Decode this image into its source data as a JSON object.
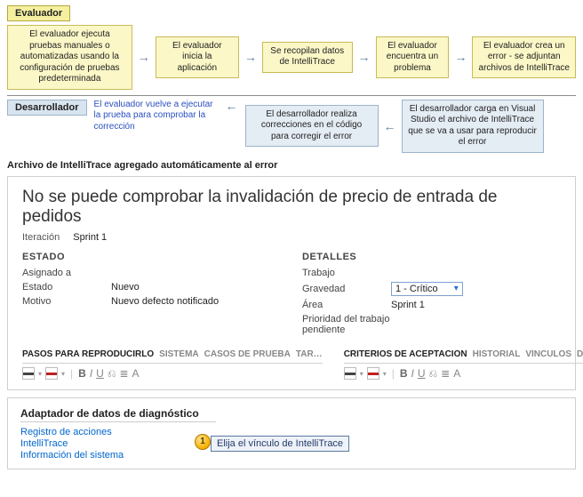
{
  "roles": {
    "evaluator": "Evaluador",
    "developer": "Desarrollador"
  },
  "flow": {
    "row1": [
      "El evaluador ejecuta pruebas manuales o automatizadas usando la configuración de pruebas predeterminada",
      "El evaluador inicia la aplicación",
      "Se recopilan datos de IntelliTrace",
      "El evaluador encuentra un problema",
      "El evaluador crea un error - se adjuntan archivos de IntelliTrace"
    ],
    "row1_widths": [
      150,
      100,
      108,
      88,
      124
    ],
    "mid_text": "El evaluador vuelve a ejecutar la prueba para comprobar la corrección",
    "row2": [
      "El desarrollador realiza correcciones en el código para corregir el error",
      "El desarrollador carga en Visual Studio el archivo de IntelliTrace que se va a usar para reproducir el error"
    ],
    "row2_widths": [
      150,
      160
    ],
    "arrow_color": "#5b7aa0",
    "yellow_bg": "#fbf7c7",
    "yellow_border": "#c8bb56",
    "blue_bg": "#e4ecf4",
    "blue_border": "#9bb4cb"
  },
  "caption": "Archivo de IntelliTrace agregado automáticamente al error",
  "bug": {
    "title": "No se puede comprobar la invalidación de precio de entrada de pedidos",
    "iteration_label": "Iteración",
    "iteration_value": "Sprint 1",
    "state_section": "ESTADO",
    "details_section": "DETALLES",
    "fields_left": [
      {
        "label": "Asignado a",
        "value": ""
      },
      {
        "label": "Estado",
        "value": "Nuevo"
      },
      {
        "label": "Motivo",
        "value": "Nuevo defecto notificado"
      }
    ],
    "fields_right": [
      {
        "label": "Trabajo",
        "value": ""
      },
      {
        "label": "Gravedad",
        "value": "1 - Crítico",
        "dropdown": true
      },
      {
        "label": "Área",
        "value": "Sprint 1"
      },
      {
        "label": "Prioridad del trabajo pendiente",
        "value": ""
      }
    ],
    "tabs_left": [
      "PASOS PARA REPRODUCIRLO",
      "SISTEMA",
      "CASOS DE PRUEBA",
      "TAR…"
    ],
    "tabs_right": [
      "CRITERIOS DE ACEPTACIÓN",
      "HISTORIAL",
      "VÍNCULOS",
      "DAT…"
    ],
    "toolbar_colors": {
      "swatch1": "#444444",
      "swatch2": "#c02020"
    }
  },
  "diag": {
    "heading": "Adaptador de datos de diagnóstico",
    "links": [
      "Registro de acciones",
      "IntelliTrace",
      "Información del sistema"
    ],
    "callout_num": "1",
    "callout_text": "Elija el vínculo de IntelliTrace"
  }
}
